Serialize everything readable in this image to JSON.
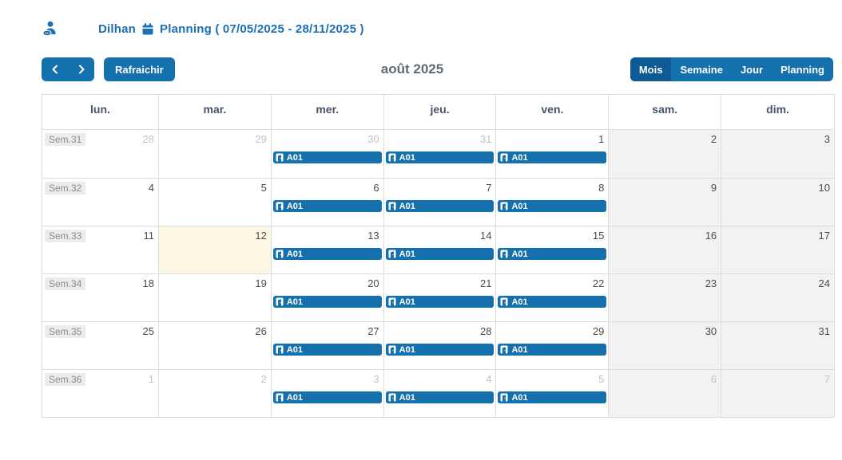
{
  "header": {
    "user_name": "Dilhan",
    "planning_label": "Planning ( 07/05/2025 - 28/11/2025 )"
  },
  "toolbar": {
    "refresh_label": "Rafraichir",
    "month_title": "août 2025",
    "views": [
      {
        "label": "Mois",
        "active": true
      },
      {
        "label": "Semaine",
        "active": false
      },
      {
        "label": "Jour",
        "active": false
      },
      {
        "label": "Planning",
        "active": false
      }
    ]
  },
  "calendar": {
    "day_headers": [
      "lun.",
      "mar.",
      "mer.",
      "jeu.",
      "ven.",
      "sam.",
      "dim."
    ],
    "weeks": [
      {
        "label": "Sem.31",
        "days": [
          {
            "date": "28",
            "muted": true
          },
          {
            "date": "29",
            "muted": true
          },
          {
            "date": "30",
            "muted": true,
            "event": "A01"
          },
          {
            "date": "31",
            "muted": true,
            "event": "A01"
          },
          {
            "date": "1",
            "event": "A01"
          },
          {
            "date": "2",
            "weekend": true
          },
          {
            "date": "3",
            "weekend": true
          }
        ]
      },
      {
        "label": "Sem.32",
        "days": [
          {
            "date": "4"
          },
          {
            "date": "5"
          },
          {
            "date": "6",
            "event": "A01"
          },
          {
            "date": "7",
            "event": "A01"
          },
          {
            "date": "8",
            "event": "A01"
          },
          {
            "date": "9",
            "weekend": true
          },
          {
            "date": "10",
            "weekend": true
          }
        ]
      },
      {
        "label": "Sem.33",
        "days": [
          {
            "date": "11"
          },
          {
            "date": "12",
            "today": true
          },
          {
            "date": "13",
            "event": "A01"
          },
          {
            "date": "14",
            "event": "A01"
          },
          {
            "date": "15",
            "event": "A01"
          },
          {
            "date": "16",
            "weekend": true
          },
          {
            "date": "17",
            "weekend": true
          }
        ]
      },
      {
        "label": "Sem.34",
        "days": [
          {
            "date": "18"
          },
          {
            "date": "19"
          },
          {
            "date": "20",
            "event": "A01"
          },
          {
            "date": "21",
            "event": "A01"
          },
          {
            "date": "22",
            "event": "A01"
          },
          {
            "date": "23",
            "weekend": true
          },
          {
            "date": "24",
            "weekend": true
          }
        ]
      },
      {
        "label": "Sem.35",
        "days": [
          {
            "date": "25"
          },
          {
            "date": "26"
          },
          {
            "date": "27",
            "event": "A01"
          },
          {
            "date": "28",
            "event": "A01"
          },
          {
            "date": "29",
            "event": "A01"
          },
          {
            "date": "30",
            "weekend": true
          },
          {
            "date": "31",
            "weekend": true
          }
        ]
      },
      {
        "label": "Sem.36",
        "days": [
          {
            "date": "1",
            "muted": true
          },
          {
            "date": "2",
            "muted": true
          },
          {
            "date": "3",
            "muted": true,
            "event": "A01"
          },
          {
            "date": "4",
            "muted": true,
            "event": "A01"
          },
          {
            "date": "5",
            "muted": true,
            "event": "A01"
          },
          {
            "date": "6",
            "muted": true,
            "weekend": true
          },
          {
            "date": "7",
            "muted": true,
            "weekend": true
          }
        ]
      }
    ]
  },
  "colors": {
    "accent": "#1571ad",
    "accent_active": "#0d5a94",
    "title_blue": "#1c6fb5",
    "weekend_bg": "#f2f2f2",
    "today_bg": "#fcf8e3",
    "grid_border": "#dddddd",
    "muted_date": "#c2c2c2",
    "date_color": "#4a4a4a"
  }
}
